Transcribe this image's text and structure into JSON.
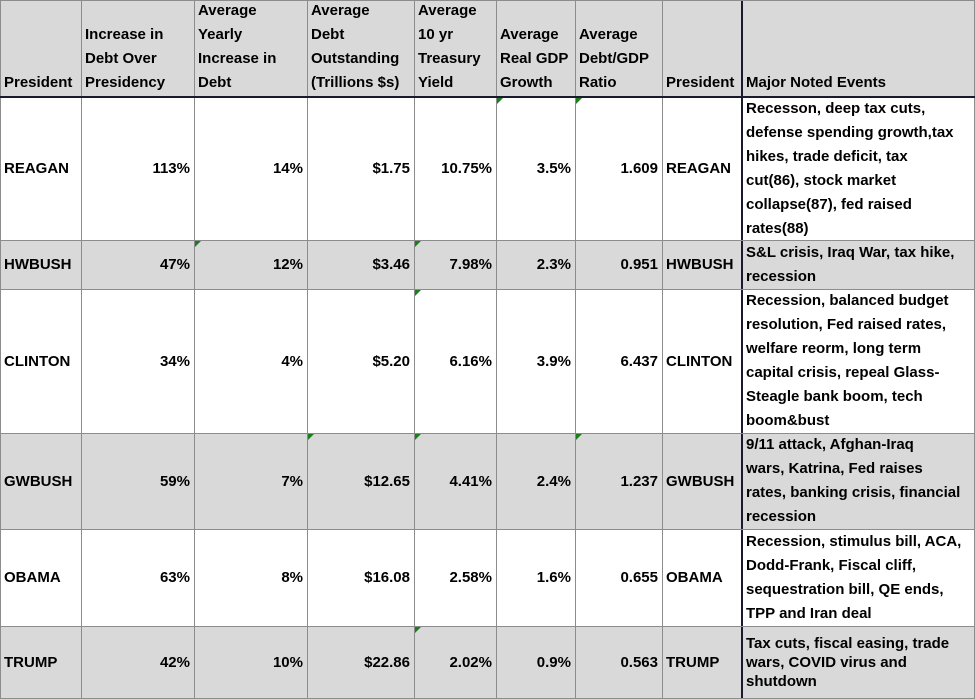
{
  "header": {
    "president": "President",
    "debt_increase": [
      "Increase in",
      "Debt Over",
      "Presidency"
    ],
    "avg_yearly_increase": [
      "Average",
      "Yearly",
      "Increase in",
      "Debt"
    ],
    "avg_debt_outstanding": [
      "Average",
      "Debt",
      "Outstanding",
      "(Trillions $s)"
    ],
    "avg_10yr_yield": [
      "Average",
      "10 yr",
      "Treasury",
      "Yield"
    ],
    "avg_real_gdp": [
      "Average",
      "Real GDP",
      "Growth"
    ],
    "avg_debt_gdp": [
      "Average",
      "Debt/GDP",
      "Ratio"
    ],
    "president_2": "President",
    "major_events": "Major Noted Events"
  },
  "rows": [
    {
      "president": "REAGAN",
      "debt_increase": "113%",
      "avg_yearly_increase": "14%",
      "avg_debt_outstanding": "$1.75",
      "avg_10yr_yield": "10.75%",
      "avg_real_gdp": "3.5%",
      "avg_debt_gdp": "1.609",
      "president_2": "REAGAN",
      "events": [
        "Recesson, deep tax cuts,",
        "defense spending growth,tax",
        "hikes, trade deficit, tax",
        "cut(86), stock market",
        "collapse(87), fed raised",
        "rates(88)"
      ]
    },
    {
      "president": "HWBUSH",
      "debt_increase": "47%",
      "avg_yearly_increase": "12%",
      "avg_debt_outstanding": "$3.46",
      "avg_10yr_yield": "7.98%",
      "avg_real_gdp": "2.3%",
      "avg_debt_gdp": "0.951",
      "president_2": "HWBUSH",
      "events": [
        "S&L crisis, Iraq War, tax hike,",
        "recession"
      ]
    },
    {
      "president": "CLINTON",
      "debt_increase": "34%",
      "avg_yearly_increase": "4%",
      "avg_debt_outstanding": "$5.20",
      "avg_10yr_yield": "6.16%",
      "avg_real_gdp": "3.9%",
      "avg_debt_gdp": "6.437",
      "president_2": "CLINTON",
      "events": [
        "Recession, balanced budget",
        "resolution, Fed raised rates,",
        "welfare reorm, long term",
        "capital crisis, repeal Glass-",
        "Steagle bank boom, tech",
        "boom&bust"
      ]
    },
    {
      "president": "GWBUSH",
      "debt_increase": "59%",
      "avg_yearly_increase": "7%",
      "avg_debt_outstanding": "$12.65",
      "avg_10yr_yield": "4.41%",
      "avg_real_gdp": "2.4%",
      "avg_debt_gdp": "1.237",
      "president_2": "GWBUSH",
      "events": [
        "9/11 attack, Afghan-Iraq",
        "wars, Katrina, Fed raises",
        "rates, banking crisis, financial",
        "recession"
      ]
    },
    {
      "president": "OBAMA",
      "debt_increase": "63%",
      "avg_yearly_increase": "8%",
      "avg_debt_outstanding": "$16.08",
      "avg_10yr_yield": "2.58%",
      "avg_real_gdp": "1.6%",
      "avg_debt_gdp": "0.655",
      "president_2": "OBAMA",
      "events": [
        "Recession, stimulus bill, ACA,",
        "Dodd-Frank, Fiscal cliff,",
        "sequestration bill, QE ends,",
        "TPP and Iran deal"
      ]
    },
    {
      "president": "TRUMP",
      "debt_increase": "42%",
      "avg_yearly_increase": "10%",
      "avg_debt_outstanding": "$22.86",
      "avg_10yr_yield": "2.02%",
      "avg_real_gdp": "0.9%",
      "avg_debt_gdp": "0.563",
      "president_2": "TRUMP",
      "events": [
        "Tax cuts, fiscal easing, trade",
        "wars, COVID virus and",
        "shutdown"
      ]
    }
  ]
}
